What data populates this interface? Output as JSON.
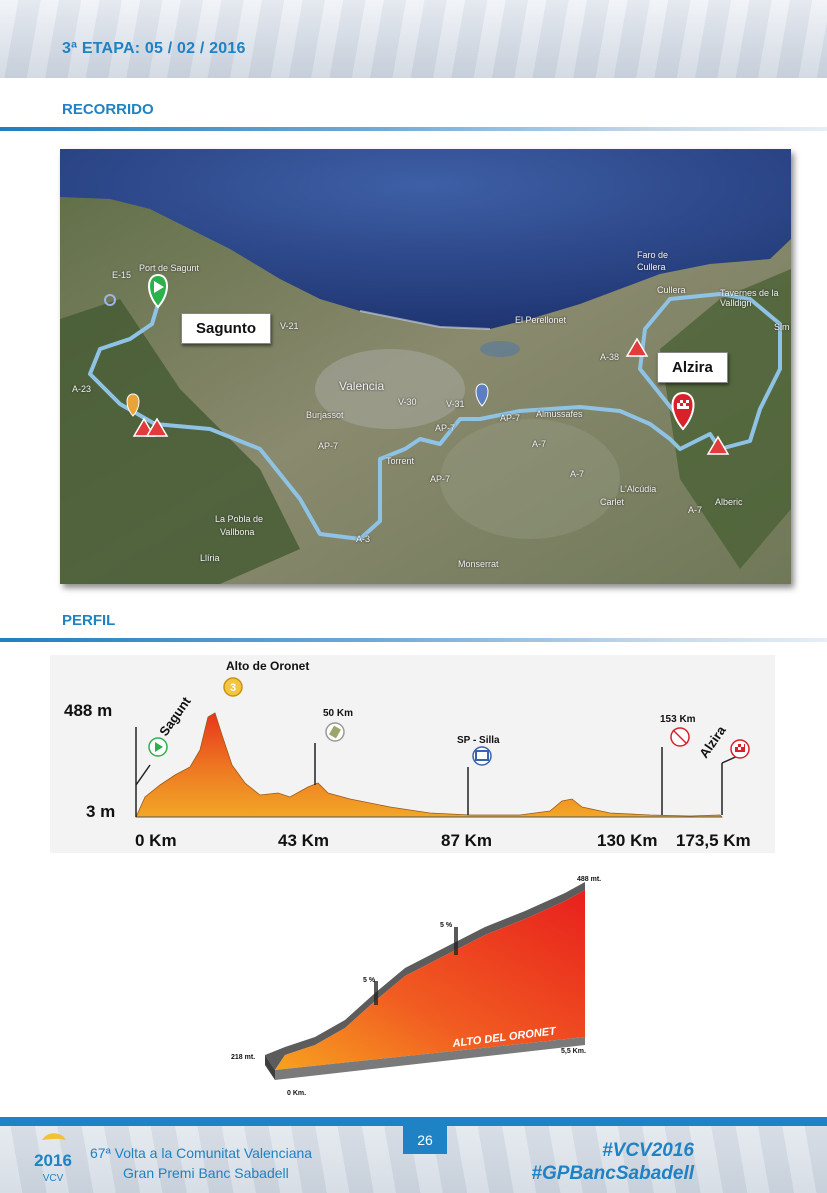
{
  "header": {
    "stage": "3ª ETAPA: 05 / 02 / 2016"
  },
  "sections": {
    "route": "RECORRIDO",
    "profile": "PERFIL"
  },
  "map": {
    "start_label": "Sagunto",
    "finish_label": "Alzira",
    "places": {
      "port_de_sagunt": "Port de Sagunt",
      "valencia": "Valencia",
      "el_perellonet": "El Perellonet",
      "faro_de": "Faro de",
      "cullera_1": "Cullera",
      "cullera_2": "Cullera",
      "tavernes": "Tavernes de la Valldign",
      "burjassot": "Burjassot",
      "torrent": "Torrent",
      "almussafes": "Almussafes",
      "la_pobla": "La Pobla de",
      "vallbona": "Vallbona",
      "lliria": "Llíria",
      "monserrat": "Monserrat",
      "lalcudia": "L'Alcúdia",
      "carlet": "Carlet",
      "alberic": "Alberic",
      "simat": "Sim"
    },
    "roads": [
      "E-15",
      "A-23",
      "V-21",
      "V-30",
      "V-31",
      "AP-7",
      "AP-7",
      "AP-7",
      "AP-7",
      "A-38",
      "A-7",
      "A-7",
      "A-7",
      "A-3"
    ],
    "colors": {
      "route": "#8fc3e6",
      "sea": "#2d4a8c",
      "land": "#7d8064",
      "start": "#2bb24c",
      "finish": "#d8212a",
      "climb": "#e8a33b"
    }
  },
  "profile": {
    "max_alt": "488 m",
    "min_alt": "3 m",
    "km_ticks": [
      "0 Km",
      "43 Km",
      "87 Km",
      "130 Km",
      "173,5 Km"
    ],
    "start_town": "Sagunt",
    "finish_town": "Alzira",
    "climb_name": "Alto de Oronet",
    "climb_category": "3",
    "km50": "50 Km",
    "sprint": "SP - Silla",
    "km153": "153 Km",
    "colors": {
      "fill_top": "#e8361d",
      "fill_bottom": "#f2a727"
    }
  },
  "climb": {
    "name": "ALTO DEL ORONET",
    "top_alt": "488 mt.",
    "base_alt": "218 mt.",
    "start_km": "0 Km.",
    "end_km": "5,5 Km.",
    "grade1": "5 %",
    "grade2": "5 %"
  },
  "footer": {
    "page": "26",
    "line1": "67ª Volta a la Comunitat Valenciana",
    "line2": "Gran Premi Banc Sabadell",
    "hashtag1": "#VCV2016",
    "hashtag2": "#GPBancSabadell",
    "logo_text": "VCV",
    "logo_year": "2016"
  }
}
